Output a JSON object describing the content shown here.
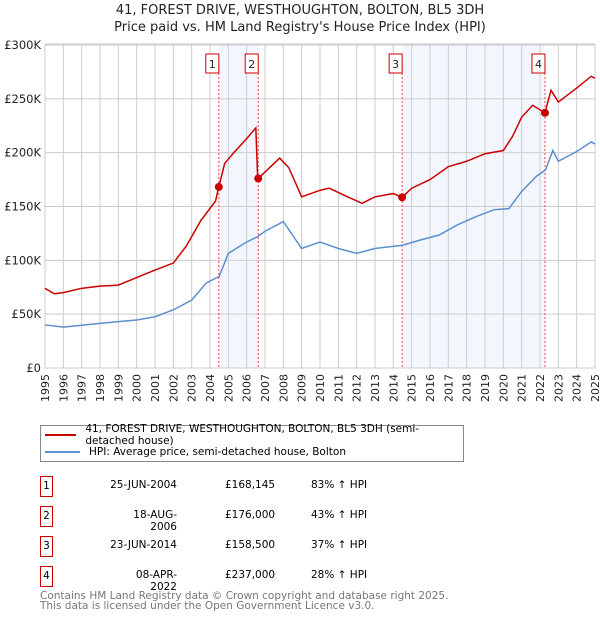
{
  "chart_data": {
    "type": "line",
    "title": "41, FOREST DRIVE, WESTHOUGHTON, BOLTON, BL5 3DH",
    "subtitle": "Price paid vs. HM Land Registry's House Price Index (HPI)",
    "xlim": [
      1995,
      2025
    ],
    "ylim": [
      0,
      300000
    ],
    "x_ticks": [
      "1995",
      "1996",
      "1997",
      "1998",
      "1999",
      "2000",
      "2001",
      "2002",
      "2003",
      "2004",
      "2005",
      "2006",
      "2007",
      "2008",
      "2009",
      "2010",
      "2011",
      "2012",
      "2013",
      "2014",
      "2015",
      "2016",
      "2017",
      "2018",
      "2019",
      "2020",
      "2021",
      "2022",
      "2023",
      "2024",
      "2025"
    ],
    "y_ticks": [
      {
        "v": 0,
        "label": "£0"
      },
      {
        "v": 50000,
        "label": "£50K"
      },
      {
        "v": 100000,
        "label": "£100K"
      },
      {
        "v": 150000,
        "label": "£150K"
      },
      {
        "v": 200000,
        "label": "£200K"
      },
      {
        "v": 250000,
        "label": "£250K"
      },
      {
        "v": 300000,
        "label": "£300K"
      }
    ],
    "grid": true,
    "shaded_ranges": [
      [
        2004.48,
        2006.63
      ],
      [
        2014.48,
        2022.27
      ]
    ],
    "series": [
      {
        "name": "41, FOREST DRIVE, WESTHOUGHTON, BOLTON, BL5 3DH (semi-detached house)",
        "color": "#cc0000",
        "points": [
          [
            1995,
            74000
          ],
          [
            1995.5,
            69000
          ],
          [
            1996,
            70000
          ],
          [
            1997,
            74000
          ],
          [
            1998,
            76000
          ],
          [
            1999,
            77000
          ],
          [
            2000,
            84000
          ],
          [
            2001,
            91000
          ],
          [
            2002,
            97500
          ],
          [
            2002.7,
            113000
          ],
          [
            2003.5,
            137000
          ],
          [
            2004.3,
            155000
          ],
          [
            2004.48,
            168145
          ],
          [
            2004.8,
            190000
          ],
          [
            2005.3,
            200000
          ],
          [
            2006,
            213000
          ],
          [
            2006.5,
            223000
          ],
          [
            2006.6,
            176000
          ],
          [
            2006.63,
            176000
          ],
          [
            2007,
            182000
          ],
          [
            2007.8,
            195000
          ],
          [
            2008.3,
            186000
          ],
          [
            2009,
            159000
          ],
          [
            2010,
            165000
          ],
          [
            2010.5,
            167000
          ],
          [
            2011.5,
            159000
          ],
          [
            2012.3,
            153000
          ],
          [
            2013,
            159000
          ],
          [
            2014,
            162000
          ],
          [
            2014.48,
            158500
          ],
          [
            2015,
            167000
          ],
          [
            2016,
            175000
          ],
          [
            2017,
            187000
          ],
          [
            2018,
            192000
          ],
          [
            2019,
            199000
          ],
          [
            2020,
            202000
          ],
          [
            2020.5,
            215000
          ],
          [
            2021,
            233000
          ],
          [
            2021.6,
            244000
          ],
          [
            2022.27,
            237000
          ],
          [
            2022.6,
            258000
          ],
          [
            2023,
            247000
          ],
          [
            2024,
            260000
          ],
          [
            2024.8,
            271000
          ],
          [
            2025,
            269000
          ]
        ]
      },
      {
        "name": "HPI: Average price, semi-detached house, Bolton",
        "color": "#5b8fd0",
        "points": [
          [
            1995,
            40000
          ],
          [
            1996,
            38000
          ],
          [
            1998,
            41500
          ],
          [
            2000,
            44600
          ],
          [
            2001,
            47600
          ],
          [
            2002,
            54000
          ],
          [
            2003,
            63000
          ],
          [
            2003.8,
            79000
          ],
          [
            2004.5,
            85000
          ],
          [
            2005,
            106500
          ],
          [
            2006,
            117000
          ],
          [
            2006.6,
            122000
          ],
          [
            2007,
            127000
          ],
          [
            2008,
            136000
          ],
          [
            2009,
            111000
          ],
          [
            2010,
            117000
          ],
          [
            2011,
            111000
          ],
          [
            2012,
            106500
          ],
          [
            2013,
            111000
          ],
          [
            2014.5,
            114000
          ],
          [
            2015.5,
            119000
          ],
          [
            2016.5,
            123500
          ],
          [
            2017.5,
            133000
          ],
          [
            2018.5,
            140500
          ],
          [
            2019.5,
            147000
          ],
          [
            2020.3,
            148000
          ],
          [
            2021,
            164000
          ],
          [
            2021.8,
            178000
          ],
          [
            2022.3,
            184000
          ],
          [
            2022.7,
            202000
          ],
          [
            2023,
            192000
          ],
          [
            2024,
            201000
          ],
          [
            2024.8,
            210000
          ],
          [
            2025,
            208000
          ]
        ]
      }
    ],
    "sales": [
      {
        "n": "1",
        "x": 2004.48,
        "y": 168145
      },
      {
        "n": "2",
        "x": 2006.63,
        "y": 176000
      },
      {
        "n": "3",
        "x": 2014.48,
        "y": 158500
      },
      {
        "n": "4",
        "x": 2022.27,
        "y": 237000
      }
    ]
  },
  "legend": {
    "property": "41, FOREST DRIVE, WESTHOUGHTON, BOLTON, BL5 3DH (semi-detached house)",
    "hpi": "HPI: Average price, semi-detached house, Bolton"
  },
  "transactions": [
    {
      "n": "1",
      "date": "25-JUN-2004",
      "price": "£168,145",
      "hpi": "83% ↑ HPI"
    },
    {
      "n": "2",
      "date": "18-AUG-2006",
      "price": "£176,000",
      "hpi": "43% ↑ HPI"
    },
    {
      "n": "3",
      "date": "23-JUN-2014",
      "price": "£158,500",
      "hpi": "37% ↑ HPI"
    },
    {
      "n": "4",
      "date": "08-APR-2022",
      "price": "£237,000",
      "hpi": "28% ↑ HPI"
    }
  ],
  "footer": {
    "line1": "Contains HM Land Registry data © Crown copyright and database right 2025.",
    "line2": "This data is licensed under the Open Government Licence v3.0."
  }
}
